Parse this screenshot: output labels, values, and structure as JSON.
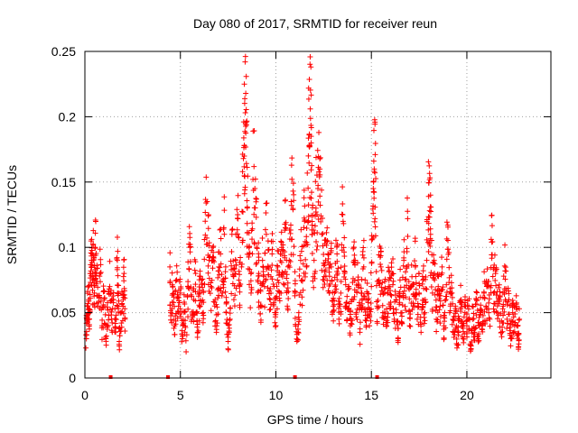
{
  "chart_data": {
    "type": "scatter",
    "title": "Day 080 of 2017, SRMTID for receiver reun",
    "xlabel": "GPS time / hours",
    "ylabel": "SRMTID / TECUs",
    "xlim": [
      0,
      24.4
    ],
    "ylim": [
      0,
      0.25
    ],
    "xticks": [
      0,
      5,
      10,
      15,
      20
    ],
    "xtick_labels": [
      "0",
      "5",
      "10",
      "15",
      "20"
    ],
    "yticks": [
      0,
      0.05,
      0.1,
      0.15,
      0.2,
      0.25
    ],
    "ytick_labels": [
      "0",
      "0.05",
      "0.1",
      "0.15",
      "0.2",
      "0.25"
    ],
    "grid": true,
    "marker": "+",
    "series_color": "#ff0000",
    "data_gaps_hours": [
      [
        2.2,
        4.4
      ]
    ],
    "flag_markers_x": [
      1.35,
      4.35,
      11.0,
      15.3
    ],
    "series": [
      {
        "name": "SRMTID",
        "points": [
          [
            0.05,
            0.023
          ],
          [
            0.1,
            0.045
          ],
          [
            0.15,
            0.055
          ],
          [
            0.2,
            0.06
          ],
          [
            0.25,
            0.05
          ],
          [
            0.3,
            0.08
          ],
          [
            0.35,
            0.085
          ],
          [
            0.4,
            0.075
          ],
          [
            0.45,
            0.09
          ],
          [
            0.5,
            0.065
          ],
          [
            0.55,
            0.1
          ],
          [
            0.6,
            0.08
          ],
          [
            0.7,
            0.055
          ],
          [
            0.8,
            0.08
          ],
          [
            0.9,
            0.04
          ],
          [
            1.0,
            0.06
          ],
          [
            1.1,
            0.03
          ],
          [
            1.2,
            0.052
          ],
          [
            1.3,
            0.07
          ],
          [
            1.4,
            0.045
          ],
          [
            1.5,
            0.06
          ],
          [
            1.6,
            0.038
          ],
          [
            1.7,
            0.09
          ],
          [
            1.75,
            0.065
          ],
          [
            1.8,
            0.028
          ],
          [
            1.9,
            0.05
          ],
          [
            2.0,
            0.055
          ],
          [
            2.05,
            0.08
          ],
          [
            2.1,
            0.045
          ],
          [
            4.45,
            0.085
          ],
          [
            4.5,
            0.05
          ],
          [
            4.6,
            0.07
          ],
          [
            4.7,
            0.04
          ],
          [
            4.8,
            0.075
          ],
          [
            4.9,
            0.055
          ],
          [
            5.0,
            0.065
          ],
          [
            5.1,
            0.03
          ],
          [
            5.2,
            0.058
          ],
          [
            5.3,
            0.02
          ],
          [
            5.4,
            0.07
          ],
          [
            5.5,
            0.1
          ],
          [
            5.6,
            0.045
          ],
          [
            5.7,
            0.06
          ],
          [
            5.8,
            0.08
          ],
          [
            5.9,
            0.035
          ],
          [
            6.0,
            0.065
          ],
          [
            6.1,
            0.075
          ],
          [
            6.2,
            0.05
          ],
          [
            6.3,
            0.12
          ],
          [
            6.4,
            0.135
          ],
          [
            6.5,
            0.09
          ],
          [
            6.6,
            0.07
          ],
          [
            6.7,
            0.1
          ],
          [
            6.8,
            0.058
          ],
          [
            6.9,
            0.04
          ],
          [
            7.0,
            0.082
          ],
          [
            7.1,
            0.095
          ],
          [
            7.2,
            0.065
          ],
          [
            7.3,
            0.11
          ],
          [
            7.4,
            0.05
          ],
          [
            7.5,
            0.028
          ],
          [
            7.6,
            0.045
          ],
          [
            7.7,
            0.11
          ],
          [
            7.8,
            0.06
          ],
          [
            7.9,
            0.09
          ],
          [
            8.0,
            0.125
          ],
          [
            8.1,
            0.07
          ],
          [
            8.2,
            0.085
          ],
          [
            8.3,
            0.168
          ],
          [
            8.35,
            0.178
          ],
          [
            8.4,
            0.203
          ],
          [
            8.45,
            0.196
          ],
          [
            8.5,
            0.13
          ],
          [
            8.6,
            0.095
          ],
          [
            8.7,
            0.065
          ],
          [
            8.8,
            0.152
          ],
          [
            8.9,
            0.145
          ],
          [
            9.0,
            0.1
          ],
          [
            9.1,
            0.08
          ],
          [
            9.2,
            0.055
          ],
          [
            9.3,
            0.09
          ],
          [
            9.4,
            0.07
          ],
          [
            9.5,
            0.11
          ],
          [
            9.6,
            0.085
          ],
          [
            9.7,
            0.06
          ],
          [
            9.8,
            0.095
          ],
          [
            9.9,
            0.07
          ],
          [
            10.0,
            0.05
          ],
          [
            10.1,
            0.085
          ],
          [
            10.2,
            0.065
          ],
          [
            10.3,
            0.1
          ],
          [
            10.4,
            0.08
          ],
          [
            10.5,
            0.115
          ],
          [
            10.6,
            0.055
          ],
          [
            10.7,
            0.09
          ],
          [
            10.8,
            0.135
          ],
          [
            10.9,
            0.143
          ],
          [
            11.0,
            0.065
          ],
          [
            11.1,
            0.028
          ],
          [
            11.2,
            0.05
          ],
          [
            11.3,
            0.09
          ],
          [
            11.4,
            0.075
          ],
          [
            11.5,
            0.12
          ],
          [
            11.6,
            0.085
          ],
          [
            11.7,
            0.17
          ],
          [
            11.75,
            0.186
          ],
          [
            11.8,
            0.206
          ],
          [
            11.85,
            0.18
          ],
          [
            11.9,
            0.11
          ],
          [
            12.0,
            0.09
          ],
          [
            12.1,
            0.13
          ],
          [
            12.2,
            0.145
          ],
          [
            12.3,
            0.16
          ],
          [
            12.4,
            0.11
          ],
          [
            12.5,
            0.075
          ],
          [
            12.6,
            0.09
          ],
          [
            12.7,
            0.105
          ],
          [
            12.8,
            0.065
          ],
          [
            12.9,
            0.085
          ],
          [
            13.0,
            0.055
          ],
          [
            13.1,
            0.07
          ],
          [
            13.2,
            0.095
          ],
          [
            13.3,
            0.045
          ],
          [
            13.4,
            0.065
          ],
          [
            13.5,
            0.125
          ],
          [
            13.6,
            0.08
          ],
          [
            13.7,
            0.055
          ],
          [
            13.8,
            0.07
          ],
          [
            13.9,
            0.04
          ],
          [
            14.0,
            0.06
          ],
          [
            14.1,
            0.09
          ],
          [
            14.2,
            0.05
          ],
          [
            14.3,
            0.075
          ],
          [
            14.4,
            0.035
          ],
          [
            14.5,
            0.065
          ],
          [
            14.6,
            0.085
          ],
          [
            14.7,
            0.048
          ],
          [
            14.8,
            0.06
          ],
          [
            14.9,
            0.04
          ],
          [
            15.0,
            0.07
          ],
          [
            15.1,
            0.145
          ],
          [
            15.15,
            0.16
          ],
          [
            15.2,
            0.171
          ],
          [
            15.3,
            0.055
          ],
          [
            15.4,
            0.075
          ],
          [
            15.5,
            0.085
          ],
          [
            15.6,
            0.05
          ],
          [
            15.7,
            0.065
          ],
          [
            15.8,
            0.04
          ],
          [
            15.9,
            0.07
          ],
          [
            16.0,
            0.055
          ],
          [
            16.1,
            0.08
          ],
          [
            16.2,
            0.045
          ],
          [
            16.3,
            0.06
          ],
          [
            16.4,
            0.03
          ],
          [
            16.5,
            0.075
          ],
          [
            16.6,
            0.05
          ],
          [
            16.7,
            0.09
          ],
          [
            16.8,
            0.062
          ],
          [
            16.9,
            0.122
          ],
          [
            17.0,
            0.04
          ],
          [
            17.1,
            0.07
          ],
          [
            17.2,
            0.055
          ],
          [
            17.3,
            0.085
          ],
          [
            17.4,
            0.045
          ],
          [
            17.5,
            0.065
          ],
          [
            17.6,
            0.035
          ],
          [
            17.7,
            0.075
          ],
          [
            17.8,
            0.05
          ],
          [
            17.9,
            0.09
          ],
          [
            18.0,
            0.139
          ],
          [
            18.05,
            0.128
          ],
          [
            18.1,
            0.11
          ],
          [
            18.2,
            0.065
          ],
          [
            18.3,
            0.08
          ],
          [
            18.4,
            0.045
          ],
          [
            18.5,
            0.07
          ],
          [
            18.6,
            0.055
          ],
          [
            18.7,
            0.085
          ],
          [
            18.8,
            0.04
          ],
          [
            18.9,
            0.06
          ],
          [
            19.0,
            0.117
          ],
          [
            19.1,
            0.05
          ],
          [
            19.2,
            0.065
          ],
          [
            19.3,
            0.035
          ],
          [
            19.4,
            0.055
          ],
          [
            19.5,
            0.025
          ],
          [
            19.6,
            0.045
          ],
          [
            19.7,
            0.06
          ],
          [
            19.8,
            0.03
          ],
          [
            19.9,
            0.05
          ],
          [
            20.0,
            0.04
          ],
          [
            20.1,
            0.055
          ],
          [
            20.2,
            0.025
          ],
          [
            20.3,
            0.045
          ],
          [
            20.4,
            0.035
          ],
          [
            20.5,
            0.06
          ],
          [
            20.6,
            0.03
          ],
          [
            20.7,
            0.05
          ],
          [
            20.8,
            0.04
          ],
          [
            20.9,
            0.065
          ],
          [
            21.0,
            0.055
          ],
          [
            21.1,
            0.07
          ],
          [
            21.2,
            0.045
          ],
          [
            21.3,
            0.104
          ],
          [
            21.4,
            0.065
          ],
          [
            21.5,
            0.08
          ],
          [
            21.6,
            0.05
          ],
          [
            21.7,
            0.06
          ],
          [
            21.8,
            0.035
          ],
          [
            21.9,
            0.055
          ],
          [
            22.0,
            0.082
          ],
          [
            22.1,
            0.045
          ],
          [
            22.2,
            0.06
          ],
          [
            22.3,
            0.03
          ],
          [
            22.4,
            0.05
          ],
          [
            22.5,
            0.04
          ],
          [
            22.6,
            0.055
          ],
          [
            22.7,
            0.022
          ],
          [
            22.75,
            0.045
          ]
        ]
      }
    ]
  }
}
